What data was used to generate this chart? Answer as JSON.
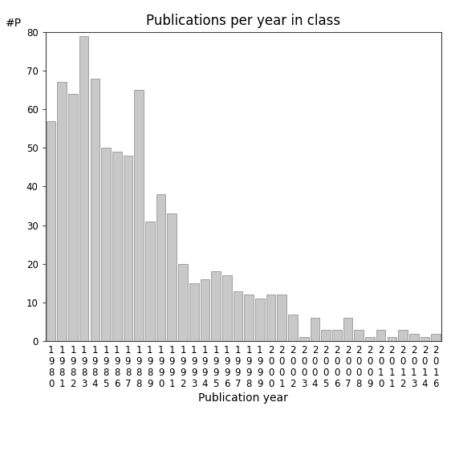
{
  "title": "Publications per year in class",
  "xlabel": "Publication year",
  "ylabel": "#P",
  "bar_color": "#c8c8c8",
  "bar_edge_color": "#888888",
  "categories": [
    "1980",
    "1981",
    "1982",
    "1983",
    "1984",
    "1985",
    "1986",
    "1987",
    "1988",
    "1989",
    "1990",
    "1991",
    "1992",
    "1993",
    "1994",
    "1995",
    "1996",
    "1997",
    "1998",
    "1999",
    "2000",
    "2001",
    "2002",
    "2003",
    "2004",
    "2005",
    "2006",
    "2007",
    "2008",
    "2009",
    "2010",
    "2011",
    "2012",
    "2013",
    "2014",
    "2016"
  ],
  "values": [
    57,
    67,
    64,
    79,
    68,
    50,
    49,
    48,
    65,
    31,
    38,
    33,
    20,
    15,
    16,
    18,
    17,
    13,
    12,
    11,
    12,
    12,
    7,
    1,
    6,
    3,
    3,
    6,
    3,
    1,
    3,
    1,
    3,
    2,
    1,
    2
  ],
  "ylim": [
    0,
    80
  ],
  "yticks": [
    0,
    10,
    20,
    30,
    40,
    50,
    60,
    70,
    80
  ],
  "bg_color": "#ffffff",
  "title_fontsize": 12,
  "label_fontsize": 10,
  "tick_fontsize": 8.5
}
